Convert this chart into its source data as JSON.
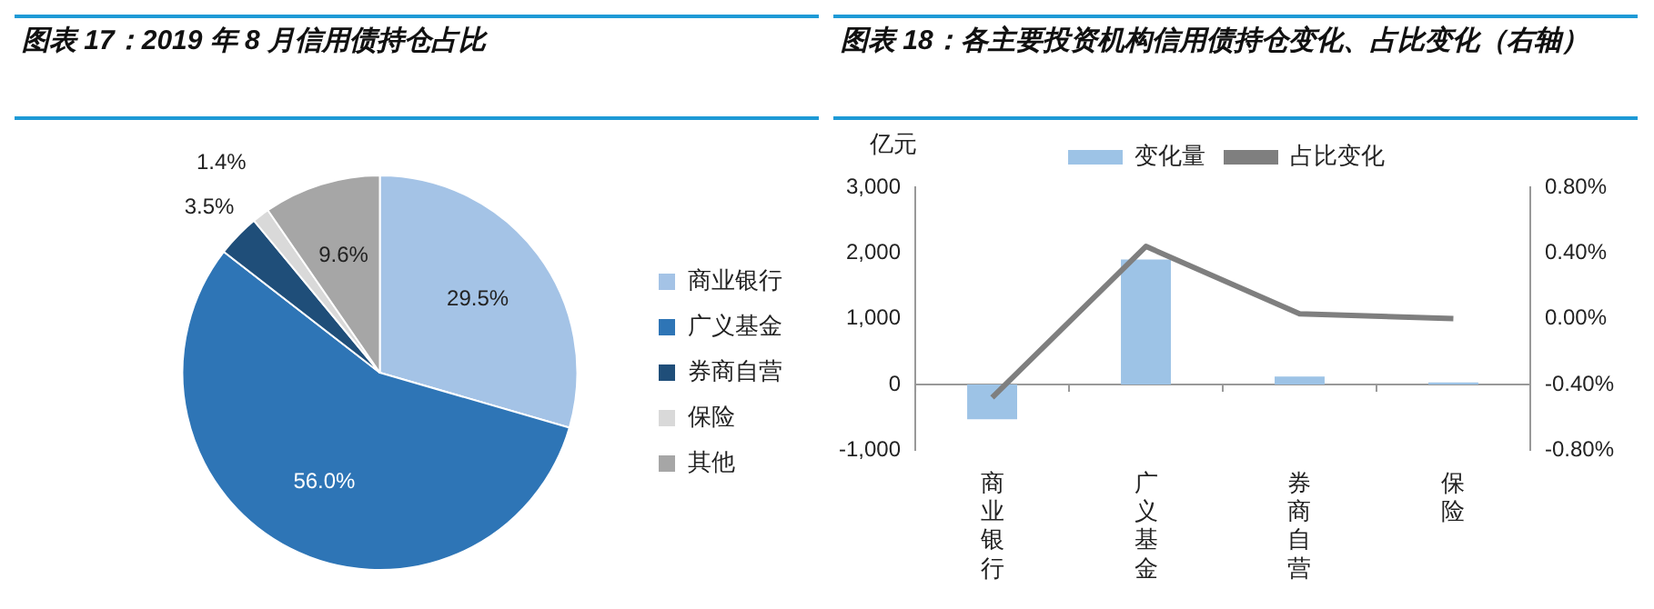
{
  "chart_data": [
    {
      "type": "pie",
      "title": "图表 17：2019 年 8 月信用债持仓占比",
      "categories": [
        "商业银行",
        "广义基金",
        "券商自营",
        "保险",
        "其他"
      ],
      "values": [
        29.5,
        56.0,
        3.5,
        1.4,
        9.6
      ],
      "value_labels": [
        "29.5%",
        "56.0%",
        "3.5%",
        "1.4%",
        "9.6%"
      ],
      "colors": [
        "#a4c3e6",
        "#2e75b6",
        "#1f4e79",
        "#d9d9d9",
        "#a6a6a6"
      ],
      "legend": "right"
    },
    {
      "type": "bar",
      "title": "图表 18：各主要投资机构信用债持仓变化、占比变化（右轴）",
      "ylabel": "亿元",
      "categories": [
        "商业银行",
        "广义基金",
        "券商自营",
        "保险"
      ],
      "series": [
        {
          "name": "变化量",
          "type": "bar",
          "color": "#9dc3e6",
          "values": [
            -530,
            1900,
            120,
            30
          ]
        },
        {
          "name": "占比变化",
          "type": "line",
          "axis": "y2",
          "color": "#7f7f7f",
          "values": [
            -0.48,
            0.44,
            0.03,
            0.0
          ]
        }
      ],
      "ylim": [
        -1000,
        3000
      ],
      "yticks": [
        {
          "value": -1000,
          "label": "-1,000"
        },
        0,
        {
          "value": 1000,
          "label": "1,000"
        },
        {
          "value": 2000,
          "label": "2,000"
        },
        {
          "value": 3000,
          "label": "3,000"
        }
      ],
      "y2lim": [
        -0.8,
        0.8
      ],
      "y2ticks": [
        {
          "value": -0.8,
          "label": "-0.80%"
        },
        {
          "value": -0.4,
          "label": "-0.40%"
        },
        {
          "value": 0,
          "label": "0.00%"
        },
        {
          "value": 0.4,
          "label": "0.40%"
        },
        {
          "value": 0.8,
          "label": "0.80%"
        }
      ],
      "legend": "top",
      "marker": "none",
      "line_style": "solid"
    }
  ]
}
